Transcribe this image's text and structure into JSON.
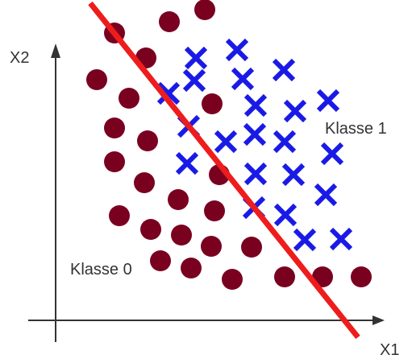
{
  "axes": {
    "x_label": "X1",
    "y_label": "X2"
  },
  "classes": [
    {
      "label": "Klasse 0",
      "marker": "circle",
      "color": "#7a0020"
    },
    {
      "label": "Klasse 1",
      "marker": "cross",
      "color": "#1a1ae6"
    }
  ],
  "boundary": {
    "color": "#ee1c1c"
  },
  "axis_color": "#333333"
}
